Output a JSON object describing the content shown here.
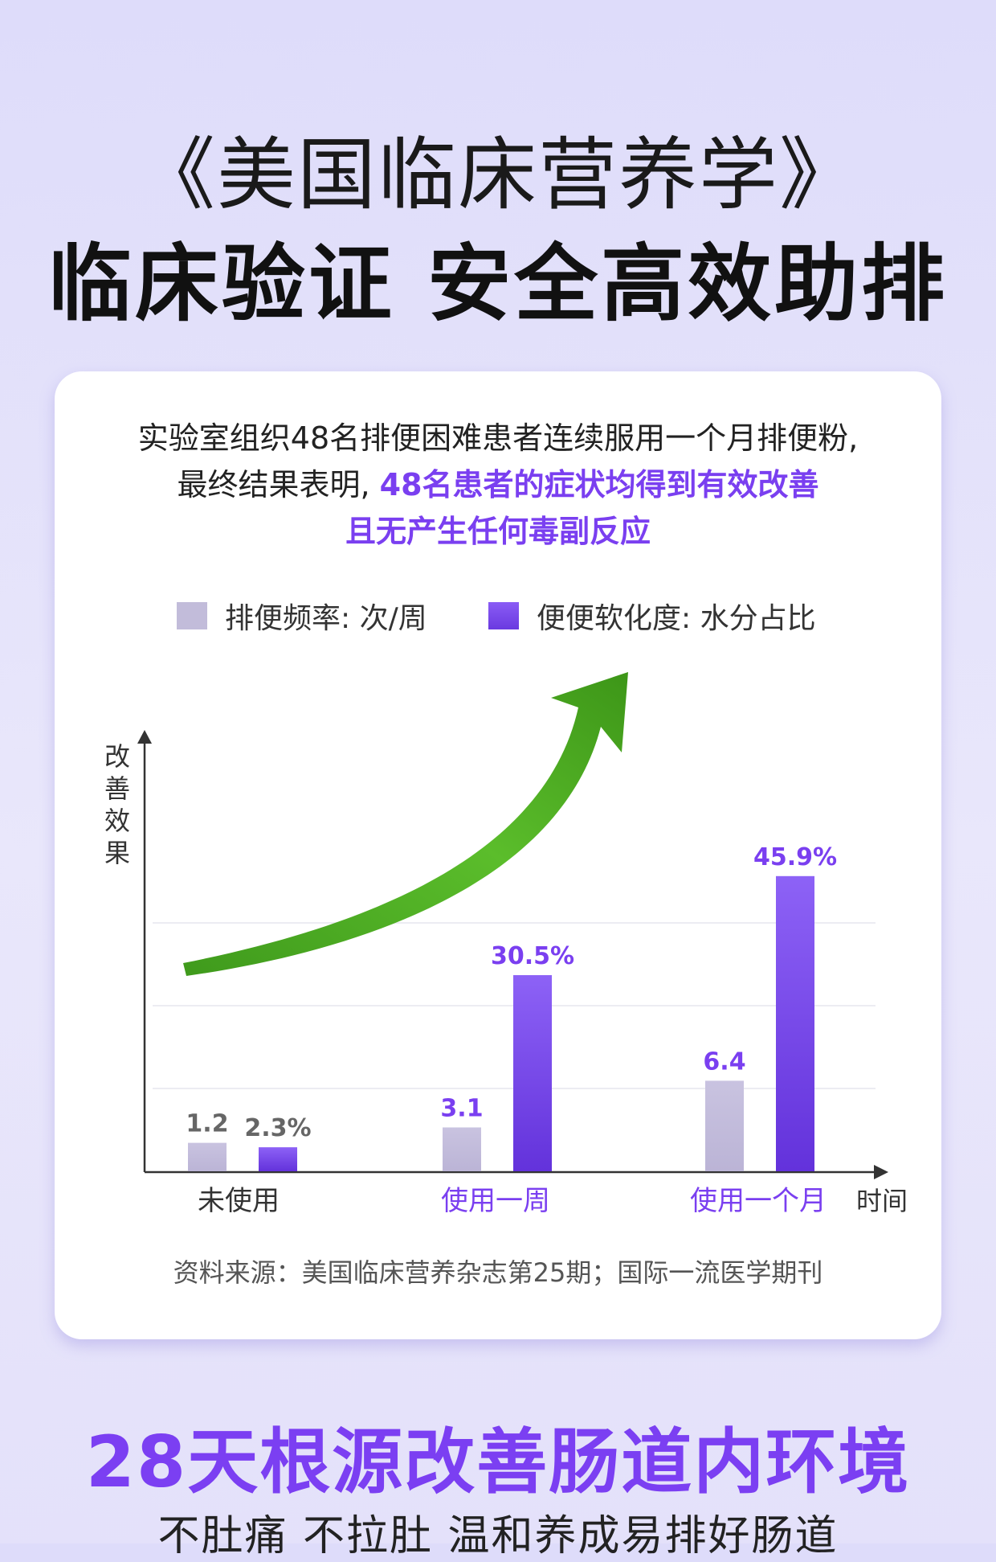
{
  "header": {
    "title_line1": "《美国临床营养学》",
    "title_line2": "临床验证 安全高效助排"
  },
  "card": {
    "desc_line1": "实验室组织48名排便困难患者连续服用一个月排便粉,",
    "desc_line2_prefix": "最终结果表明,",
    "desc_line2_highlight": "48名患者的症状均得到有效改善",
    "desc_line3": "且无产生任何毒副反应",
    "source": "资料来源：美国临床营养杂志第25期；国际一流医学期刊"
  },
  "chart_data": {
    "type": "bar",
    "categories": [
      "未使用",
      "使用一周",
      "使用一个月"
    ],
    "series": [
      {
        "name": "排便频率: 次/周",
        "values": [
          1.2,
          3.1,
          6.4
        ],
        "labels": [
          "1.2",
          "3.1",
          "6.4"
        ],
        "color": "#c2bcda"
      },
      {
        "name": "便便软化度: 水分占比",
        "values": [
          2.3,
          30.5,
          45.9
        ],
        "labels": [
          "2.3%",
          "30.5%",
          "45.9%"
        ],
        "color": "#7a4cf0"
      }
    ],
    "ylabel": "改善效果",
    "xlabel": "时间",
    "grid": true,
    "legend_position": "top",
    "trend_arrow": "green-upward-arrow",
    "colors": {
      "label_first": "#666666",
      "label_highlight": "#7a3ff0",
      "category_first": "#333333",
      "category_highlight": "#7a3ff0"
    }
  },
  "footer": {
    "headline": "28天根源改善肠道内环境",
    "subline": "不肚痛 不拉肚 温和养成易排好肠道"
  }
}
